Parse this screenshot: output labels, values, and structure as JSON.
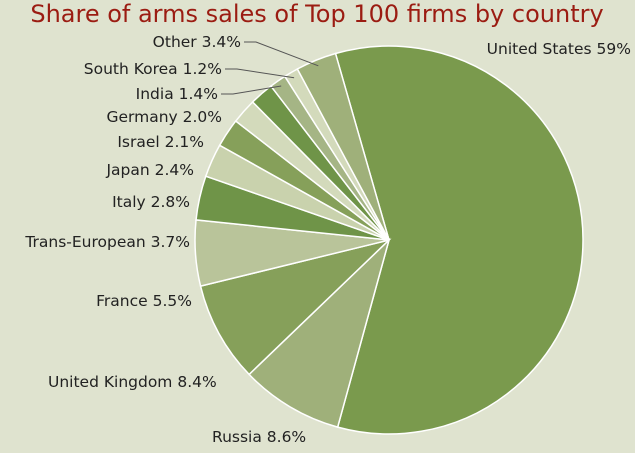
{
  "colors": {
    "background": "#dfe3cf",
    "title": "#9b1c12",
    "slice_stroke": "#ffffff",
    "leader": "#555555",
    "slice_palette": [
      "#7a9a4d",
      "#9fb07a",
      "#86a05a",
      "#b9c49a",
      "#6f9448",
      "#c9d2ad"
    ]
  },
  "chart_data": {
    "type": "pie",
    "title": "Share of arms sales of Top 100 firms by country",
    "slices": [
      {
        "label": "United States",
        "value": 59,
        "value_label": "59%",
        "color": "#7a9a4d"
      },
      {
        "label": "Russia",
        "value": 8.6,
        "value_label": "8.6%",
        "color": "#9fb07a"
      },
      {
        "label": "United Kingdom",
        "value": 8.4,
        "value_label": "8.4%",
        "color": "#86a05a"
      },
      {
        "label": "France",
        "value": 5.5,
        "value_label": "5.5%",
        "color": "#b9c49a"
      },
      {
        "label": "Trans-European",
        "value": 3.7,
        "value_label": "3.7%",
        "color": "#6f9448"
      },
      {
        "label": "Italy",
        "value": 2.8,
        "value_label": "2.8%",
        "color": "#c9d2ad"
      },
      {
        "label": "Japan",
        "value": 2.4,
        "value_label": "2.4%",
        "color": "#86a05a"
      },
      {
        "label": "Israel",
        "value": 2.1,
        "value_label": "2.1%",
        "color": "#d3dabb"
      },
      {
        "label": "Germany",
        "value": 2.0,
        "value_label": "2.0%",
        "color": "#6f9448"
      },
      {
        "label": "India",
        "value": 1.4,
        "value_label": "1.4%",
        "color": "#a5b585"
      },
      {
        "label": "South Korea",
        "value": 1.2,
        "value_label": "1.2%",
        "color": "#d3dabb"
      },
      {
        "label": "Other",
        "value": 3.4,
        "value_label": "3.4%",
        "color": "#9fb07a"
      }
    ]
  }
}
